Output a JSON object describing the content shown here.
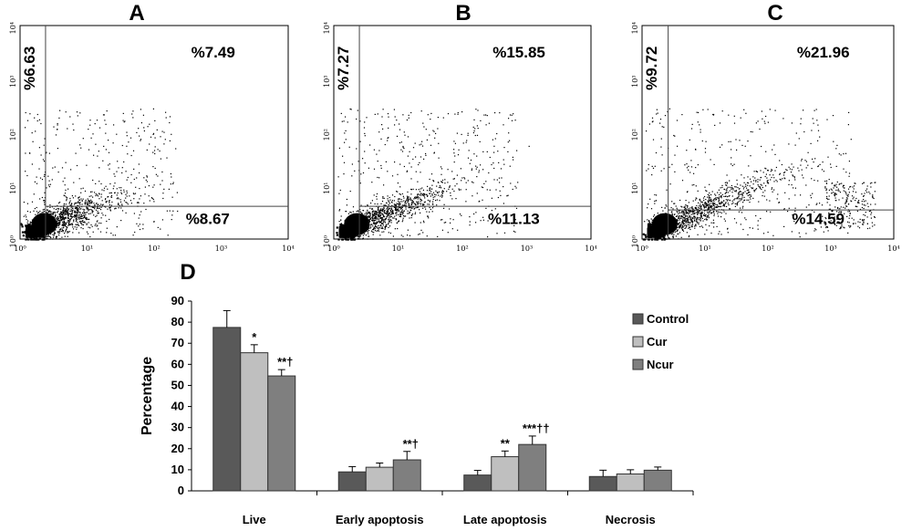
{
  "chart_data": [
    {
      "type": "scatter",
      "panel": "A",
      "x_ticks": [
        "10⁰",
        "10¹",
        "10²",
        "10³",
        "10⁴"
      ],
      "y_ticks": [
        "10⁰",
        "10¹",
        "10²",
        "10³",
        "10⁴"
      ],
      "xlim": [
        1,
        10000
      ],
      "ylim": [
        1,
        10000
      ],
      "log_scale": true,
      "gates": {
        "x": 2.4,
        "y": 4.1
      },
      "quadrants": {
        "upper_left": "%6.63",
        "upper_right": "%7.49",
        "lower_right": "%8.67"
      },
      "points_description": "dense cluster near origin, diagonal spread"
    },
    {
      "type": "scatter",
      "panel": "B",
      "x_ticks": [
        "10⁰",
        "10¹",
        "10²",
        "10³",
        "10⁴"
      ],
      "y_ticks": [
        "10⁰",
        "10¹",
        "10²",
        "10³",
        "10⁴"
      ],
      "xlim": [
        1,
        10000
      ],
      "ylim": [
        1,
        10000
      ],
      "log_scale": true,
      "gates": {
        "x": 2.5,
        "y": 4.1
      },
      "quadrants": {
        "upper_left": "%7.27",
        "upper_right": "%15.85",
        "lower_right": "%11.13"
      }
    },
    {
      "type": "scatter",
      "panel": "C",
      "x_ticks": [
        "10⁰",
        "10¹",
        "10²",
        "10³",
        "10⁴"
      ],
      "y_ticks": [
        "10⁰",
        "10¹",
        "10²",
        "10³",
        "10⁴"
      ],
      "xlim": [
        1,
        10000
      ],
      "ylim": [
        1,
        10000
      ],
      "log_scale": true,
      "gates": {
        "x": 2.6,
        "y": 3.5
      },
      "quadrants": {
        "upper_left": "%9.72",
        "upper_right": "%21.96",
        "lower_right": "%14.59"
      }
    },
    {
      "type": "bar",
      "panel": "D",
      "ylabel": "Percentage",
      "ylim": [
        0,
        90
      ],
      "y_ticks": [
        0,
        10,
        20,
        30,
        40,
        50,
        60,
        70,
        80,
        90
      ],
      "categories": [
        "Live",
        "Early apoptosis",
        "Late apoptosis",
        "Necrosis"
      ],
      "legend_position": "right",
      "series": [
        {
          "name": "Control",
          "color": "#595959",
          "values": [
            77.5,
            9.0,
            7.5,
            6.8
          ],
          "errors": [
            8.0,
            2.5,
            2.2,
            3.0
          ]
        },
        {
          "name": "Cur",
          "color": "#bfbfbf",
          "values": [
            65.5,
            11.2,
            16.2,
            8.0
          ],
          "errors": [
            3.8,
            2.0,
            2.7,
            2.0
          ]
        },
        {
          "name": "Ncur",
          "color": "#7f7f7f",
          "values": [
            54.5,
            14.7,
            22.0,
            9.8
          ],
          "errors": [
            3.0,
            4.0,
            4.0,
            1.5
          ]
        }
      ],
      "annotations": [
        {
          "category": 0,
          "series": 1,
          "text": "*"
        },
        {
          "category": 0,
          "series": 2,
          "text": "**†"
        },
        {
          "category": 1,
          "series": 2,
          "text": "**†"
        },
        {
          "category": 2,
          "series": 1,
          "text": "**"
        },
        {
          "category": 2,
          "series": 2,
          "text": "***††"
        }
      ]
    }
  ]
}
